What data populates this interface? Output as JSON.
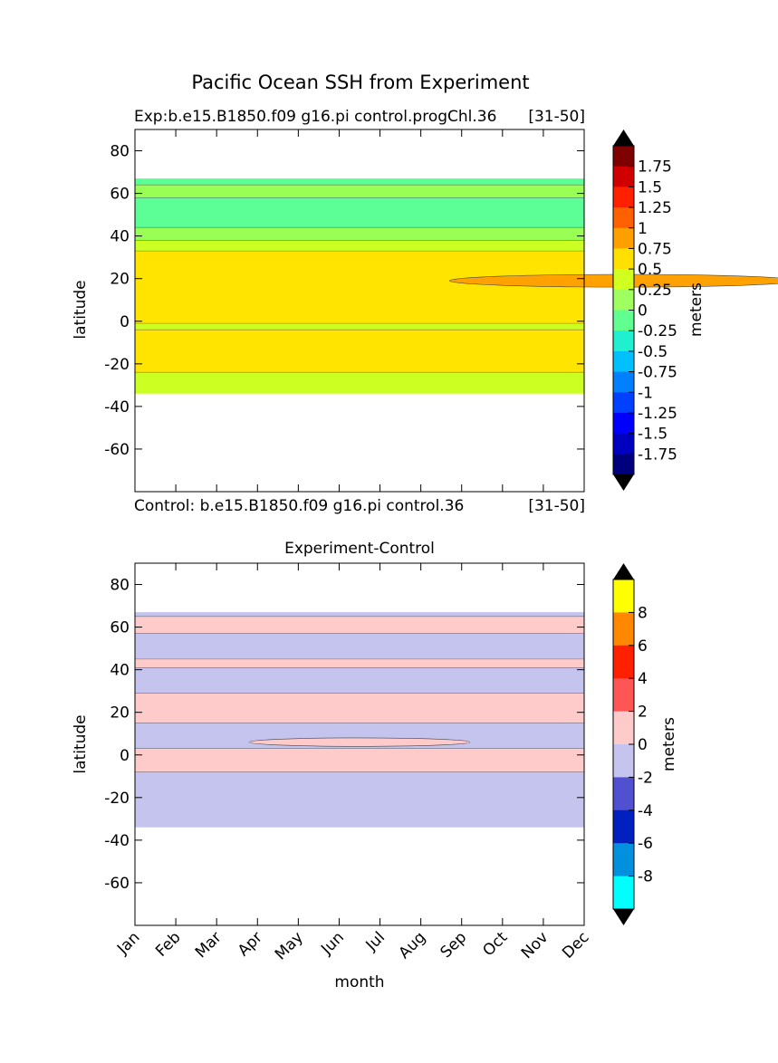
{
  "figure": {
    "title": "Pacific Ocean SSH from Experiment"
  },
  "chart_data": [
    {
      "type": "heatmap",
      "panel": "top",
      "subtitle_left": "Exp:b.e15.B1850.f09 g16.pi control.progChl.36",
      "subtitle_right": "[31-50]",
      "caption_left": "Control: b.e15.B1850.f09 g16.pi control.36",
      "caption_right": "[31-50]",
      "xlabel": "",
      "ylabel": "latitude",
      "ylim": [
        -80,
        90
      ],
      "yticks": [
        80,
        60,
        40,
        20,
        0,
        -20,
        -40,
        -60
      ],
      "data_lat_range": [
        -34,
        67
      ],
      "colorbar": {
        "label": "meters",
        "levels": [
          -2,
          -1.75,
          -1.5,
          -1.25,
          -1,
          -0.75,
          -0.5,
          -0.25,
          0,
          0.25,
          0.5,
          0.75,
          1,
          1.25,
          1.5,
          1.75,
          2
        ],
        "tick_labels": [
          "1.75",
          "1.5",
          "1.25",
          "1",
          "0.75",
          "0.5",
          "0.25",
          "0",
          "-0.25",
          "-0.5",
          "-0.75",
          "-1",
          "-1.25",
          "-1.5",
          "-1.75"
        ],
        "colors": [
          "#00007f",
          "#0000bf",
          "#0000ff",
          "#0040ff",
          "#0080ff",
          "#00c0ff",
          "#20f0d0",
          "#60ff90",
          "#a0ff60",
          "#d0ff20",
          "#ffe000",
          "#ffa000",
          "#ff6000",
          "#ff2000",
          "#d00000",
          "#7f0000"
        ],
        "extend": "both"
      },
      "bands": [
        {
          "lat": [
            -34,
            -24
          ],
          "value": 0.375,
          "color": "#ccff22"
        },
        {
          "lat": [
            -24,
            -4
          ],
          "value": 0.625,
          "color": "#ffe400"
        },
        {
          "lat": [
            -4,
            -1
          ],
          "value": 0.375,
          "color": "#ccff22"
        },
        {
          "lat": [
            -1,
            33
          ],
          "value": 0.625,
          "color": "#ffe400"
        },
        {
          "lat": [
            33,
            38
          ],
          "value": 0.375,
          "color": "#ccff22"
        },
        {
          "lat": [
            38,
            44
          ],
          "value": 0.125,
          "color": "#99ff55"
        },
        {
          "lat": [
            44,
            58
          ],
          "value": -0.125,
          "color": "#5cff96"
        },
        {
          "lat": [
            58,
            64
          ],
          "value": 0.125,
          "color": "#99ff55"
        },
        {
          "lat": [
            64,
            67
          ],
          "value": -0.125,
          "color": "#5cff96"
        }
      ],
      "features": [
        {
          "month_range": [
            7.7,
            16.2
          ],
          "lat_range": [
            16,
            22
          ],
          "value": 0.875,
          "color": "#ffa200"
        }
      ]
    },
    {
      "type": "heatmap",
      "panel": "bottom",
      "title": "Experiment-Control",
      "xlabel": "month",
      "ylabel": "latitude",
      "ylim": [
        -80,
        90
      ],
      "yticks": [
        80,
        60,
        40,
        20,
        0,
        -20,
        -40,
        -60
      ],
      "xticks": [
        "Jan",
        "Feb",
        "Mar",
        "Apr",
        "May",
        "Jun",
        "Jul",
        "Aug",
        "Sep",
        "Oct",
        "Nov",
        "Dec"
      ],
      "data_lat_range": [
        -34,
        67
      ],
      "colorbar": {
        "label": "meters",
        "levels": [
          -10,
          -8,
          -6,
          -4,
          -2,
          0,
          2,
          4,
          6,
          8,
          10
        ],
        "tick_labels": [
          "8",
          "6",
          "4",
          "2",
          "0",
          "-2",
          "-4",
          "-6",
          "-8"
        ],
        "colors": [
          "#00ffff",
          "#0090dd",
          "#0020c0",
          "#5050d0",
          "#c4c4ee",
          "#ffcaca",
          "#ff5555",
          "#ff2000",
          "#ff8800",
          "#ffff00"
        ],
        "extend": "both"
      },
      "bands": [
        {
          "lat": [
            -34,
            -8
          ],
          "value": -1,
          "color": "#c4c4ee"
        },
        {
          "lat": [
            -8,
            3
          ],
          "value": 1,
          "color": "#ffcaca"
        },
        {
          "lat": [
            3,
            15
          ],
          "value": -1,
          "color": "#c4c4ee"
        },
        {
          "lat": [
            15,
            29
          ],
          "value": 1,
          "color": "#ffcaca"
        },
        {
          "lat": [
            29,
            41
          ],
          "value": -1,
          "color": "#c4c4ee"
        },
        {
          "lat": [
            41,
            45
          ],
          "value": 1,
          "color": "#ffcaca"
        },
        {
          "lat": [
            45,
            57
          ],
          "value": -1,
          "color": "#c4c4ee"
        },
        {
          "lat": [
            57,
            65
          ],
          "value": 1,
          "color": "#ffcaca"
        },
        {
          "lat": [
            65,
            67
          ],
          "value": -1,
          "color": "#c4c4ee"
        }
      ],
      "features": [
        {
          "month_range": [
            2.8,
            8.2
          ],
          "lat_range": [
            4,
            8
          ],
          "value": 1,
          "color": "#ffcaca"
        }
      ]
    }
  ]
}
